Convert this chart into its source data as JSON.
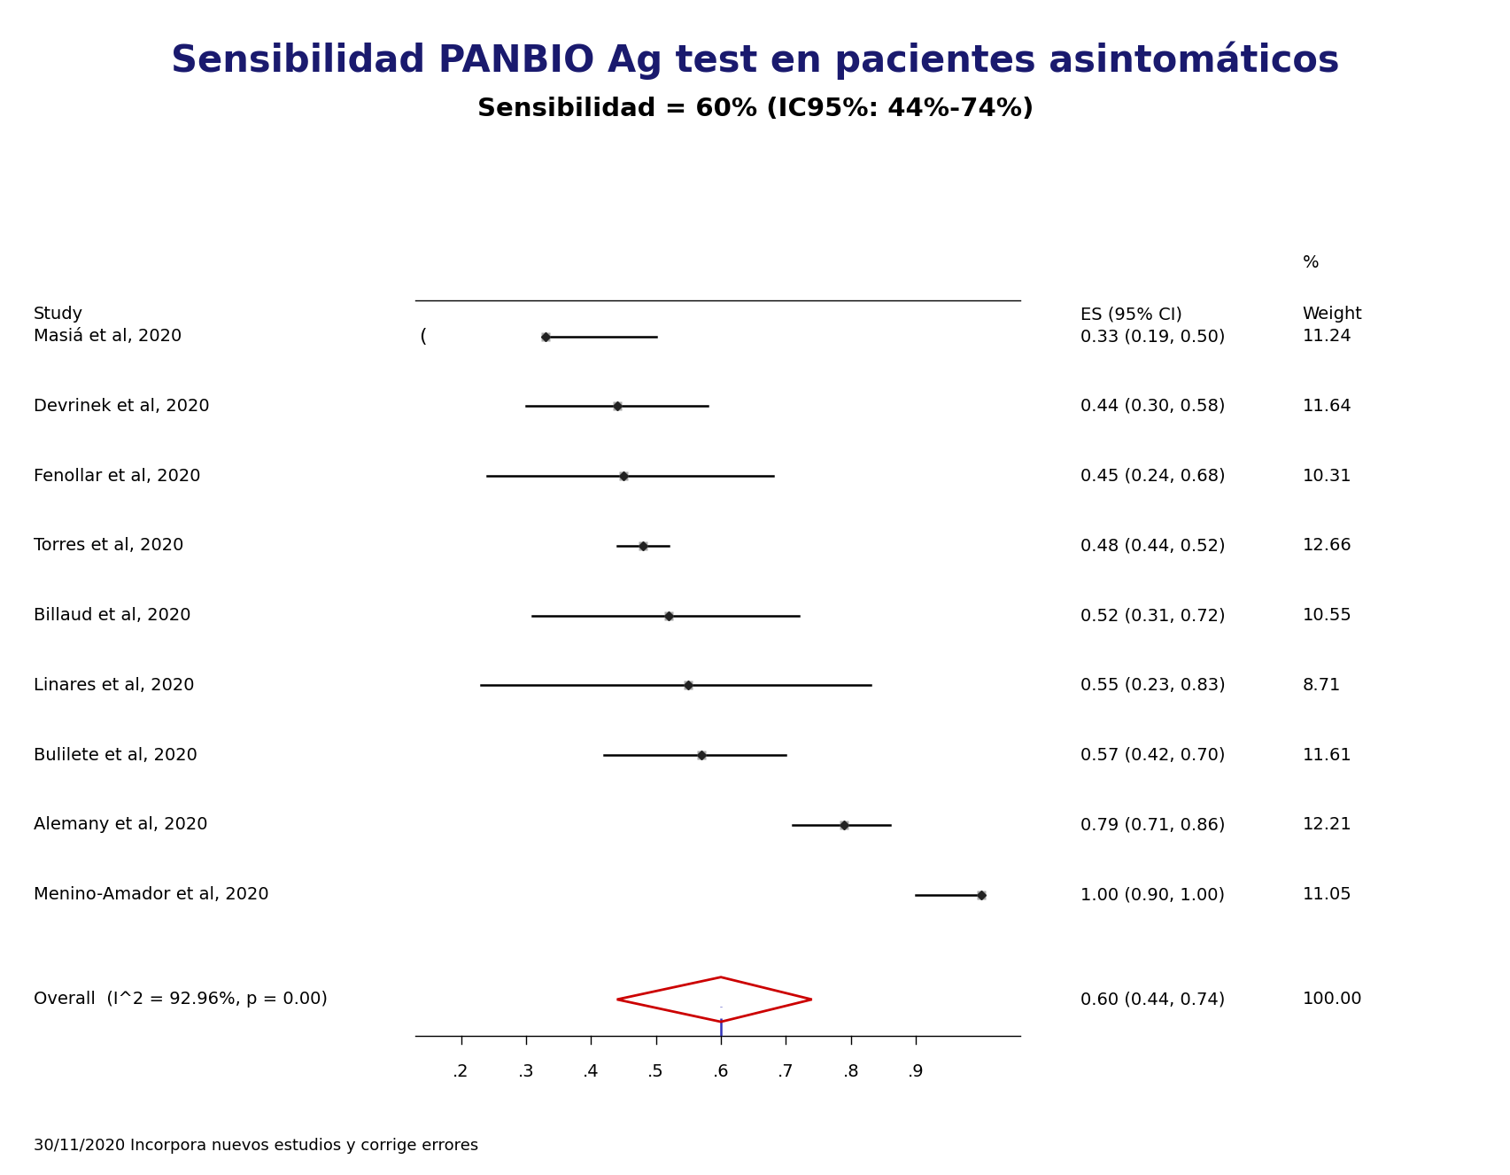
{
  "title": "Sensibilidad PANBIO Ag test en pacientes asintomáticos",
  "subtitle": "Sensibilidad = 60% (IC95%: 44%-74%)",
  "footer": "30/11/2020 Incorpora nuevos estudios y corrige errores",
  "col_study": "Study",
  "col_es": "ES (95% CI)",
  "col_weight": "Weight",
  "col_pct": "%",
  "studies": [
    {
      "name": "Masiá et al, 2020",
      "es": 0.33,
      "ci_lo": 0.19,
      "ci_hi": 0.5,
      "weight": 11.24,
      "label": "0.33 (0.19, 0.50)",
      "arrow_left": true
    },
    {
      "name": "Devrinek et al, 2020",
      "es": 0.44,
      "ci_lo": 0.3,
      "ci_hi": 0.58,
      "weight": 11.64,
      "label": "0.44 (0.30, 0.58)",
      "arrow_left": false
    },
    {
      "name": "Fenollar et al, 2020",
      "es": 0.45,
      "ci_lo": 0.24,
      "ci_hi": 0.68,
      "weight": 10.31,
      "label": "0.45 (0.24, 0.68)",
      "arrow_left": false
    },
    {
      "name": "Torres et al, 2020",
      "es": 0.48,
      "ci_lo": 0.44,
      "ci_hi": 0.52,
      "weight": 12.66,
      "label": "0.48 (0.44, 0.52)",
      "arrow_left": false
    },
    {
      "name": "Billaud et al, 2020",
      "es": 0.52,
      "ci_lo": 0.31,
      "ci_hi": 0.72,
      "weight": 10.55,
      "label": "0.52 (0.31, 0.72)",
      "arrow_left": false
    },
    {
      "name": "Linares et al, 2020",
      "es": 0.55,
      "ci_lo": 0.23,
      "ci_hi": 0.83,
      "weight": 8.71,
      "label": "0.55 (0.23, 0.83)",
      "arrow_left": false
    },
    {
      "name": "Bulilete et al, 2020",
      "es": 0.57,
      "ci_lo": 0.42,
      "ci_hi": 0.7,
      "weight": 11.61,
      "label": "0.57 (0.42, 0.70)",
      "arrow_left": false
    },
    {
      "name": "Alemany et al, 2020",
      "es": 0.79,
      "ci_lo": 0.71,
      "ci_hi": 0.86,
      "weight": 12.21,
      "label": "0.79 (0.71, 0.86)",
      "arrow_left": false
    },
    {
      "name": "Menino-Amador et al, 2020",
      "es": 1.0,
      "ci_lo": 0.9,
      "ci_hi": 1.0,
      "weight": 11.05,
      "label": "1.00 (0.90, 1.00)",
      "arrow_left": false
    }
  ],
  "overall": {
    "name": "Overall  (I^2 = 92.96%, p = 0.00)",
    "es": 0.6,
    "ci_lo": 0.44,
    "ci_hi": 0.74,
    "label": "0.60 (0.44, 0.74)",
    "weight": 100.0,
    "weight_label": "100.00"
  },
  "xmin": 0.13,
  "xmax": 1.06,
  "xticks": [
    0.2,
    0.3,
    0.4,
    0.5,
    0.6,
    0.7,
    0.8,
    0.9
  ],
  "xticklabels": [
    ".2",
    ".3",
    ".4",
    ".5",
    ".6",
    ".7",
    ".8",
    ".9"
  ],
  "vline_x": 0.6,
  "title_color": "#1a1a6e",
  "subtitle_color": "#000000",
  "title_fontsize": 30,
  "subtitle_fontsize": 21,
  "study_fontsize": 14,
  "header_fontsize": 14,
  "footer_fontsize": 13,
  "marker_color": "#222222",
  "marker_bg_color": "#aaaaaa",
  "overall_diamond_color": "#cc0000",
  "ci_line_color": "#000000",
  "vline_color": "#3333bb",
  "background_color": "#ffffff"
}
